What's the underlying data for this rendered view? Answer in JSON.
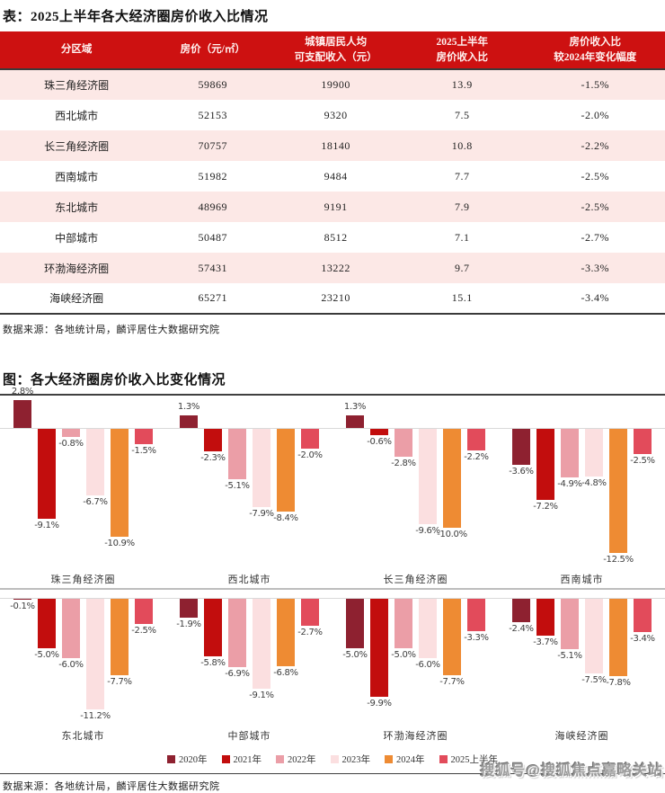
{
  "page": {
    "table_title": "表：2025上半年各大经济圈房价收入比情况",
    "chart_title": "图：各大经济圈房价收入比变化情况",
    "table_source": "数据来源：各地统计局，麟评居住大数据研究院",
    "chart_source": "数据来源：各地统计局，麟评居住大数据研究院",
    "watermark": "搜狐号@搜狐焦点嘉略关站"
  },
  "colors": {
    "header_red": "#cd1111",
    "row_pink": "#fce8e6",
    "axis_gray": "#d9d9d9",
    "rule_dark": "#404040"
  },
  "table": {
    "headers": [
      [
        "分区域"
      ],
      [
        "房价（元/㎡）"
      ],
      [
        "城镇居民人均",
        "可支配收入（元）"
      ],
      [
        "2025上半年",
        "房价收入比"
      ],
      [
        "房价收入比",
        "较2024年变化幅度"
      ]
    ],
    "rows": [
      [
        "珠三角经济圈",
        "59869",
        "19900",
        "13.9",
        "-1.5%"
      ],
      [
        "西北城市",
        "52153",
        "9320",
        "7.5",
        "-2.0%"
      ],
      [
        "长三角经济圈",
        "70757",
        "18140",
        "10.8",
        "-2.2%"
      ],
      [
        "西南城市",
        "51982",
        "9484",
        "7.7",
        "-2.5%"
      ],
      [
        "东北城市",
        "48969",
        "9191",
        "7.9",
        "-2.5%"
      ],
      [
        "中部城市",
        "50487",
        "8512",
        "7.1",
        "-2.7%"
      ],
      [
        "环渤海经济圈",
        "57431",
        "13222",
        "9.7",
        "-3.3%"
      ],
      [
        "海峡经济圈",
        "65271",
        "23210",
        "15.1",
        "-3.4%"
      ]
    ]
  },
  "chart_data": {
    "type": "bar",
    "title": "图：各大经济圈房价收入比变化情况",
    "unit": "%",
    "categories": [
      "珠三角经济圈",
      "西北城市",
      "长三角经济圈",
      "西南城市",
      "东北城市",
      "中部城市",
      "环渤海经济圈",
      "海峡经济圈"
    ],
    "series": [
      {
        "name": "2020年",
        "color": "#8e2130",
        "values": [
          2.8,
          1.3,
          1.3,
          -3.6,
          -0.1,
          -1.9,
          -5.0,
          -2.4
        ]
      },
      {
        "name": "2021年",
        "color": "#c20d0d",
        "values": [
          -9.1,
          -2.3,
          -0.6,
          -7.2,
          -5.0,
          -5.8,
          -9.9,
          -3.7
        ]
      },
      {
        "name": "2022年",
        "color": "#eb9ea7",
        "values": [
          -0.8,
          -5.1,
          -2.8,
          -4.9,
          -6.0,
          -6.9,
          -5.0,
          -5.1
        ]
      },
      {
        "name": "2023年",
        "color": "#fbdfe0",
        "values": [
          -6.7,
          -7.9,
          -9.6,
          -4.8,
          -11.2,
          -9.1,
          -6.0,
          -7.5
        ]
      },
      {
        "name": "2024年",
        "color": "#ee8b33",
        "values": [
          -10.9,
          -8.4,
          -10.0,
          -12.5,
          -7.7,
          -6.8,
          -7.7,
          -7.8
        ]
      },
      {
        "name": "2025上半年",
        "color": "#e24b5b",
        "values": [
          -1.5,
          -2.0,
          -2.2,
          -2.5,
          -2.5,
          -2.7,
          -3.3,
          -3.4
        ]
      }
    ],
    "ylim": [
      -13,
      3
    ],
    "grid": false,
    "legend_position": "bottom",
    "layout": "small-multiples 2x4"
  }
}
